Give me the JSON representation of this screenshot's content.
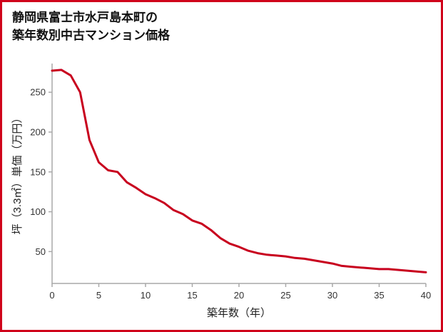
{
  "page": {
    "border_color": "#d0021b",
    "background": "#ffffff"
  },
  "header": {
    "title_line1": "静岡県富士市水戸島本町の",
    "title_line2": "築年数別中古マンション価格"
  },
  "chart_data": {
    "type": "line",
    "title": "静岡県富士市水戸島本町の築年数別中古マンション価格",
    "xlabel": "築年数（年）",
    "ylabel": "坪（3.3㎡）単価（万円）",
    "xlim": [
      0,
      40
    ],
    "ylim": [
      10,
      286
    ],
    "xticks": [
      0,
      5,
      10,
      15,
      20,
      25,
      30,
      35,
      40
    ],
    "yticks": [
      50,
      100,
      150,
      200,
      250
    ],
    "grid": false,
    "legend": false,
    "line_color": "#c8001e",
    "axis_color": "#a9a9a9",
    "x": [
      0,
      1,
      2,
      3,
      4,
      5,
      6,
      7,
      8,
      9,
      10,
      11,
      12,
      13,
      14,
      15,
      16,
      17,
      18,
      19,
      20,
      21,
      22,
      23,
      24,
      25,
      26,
      27,
      28,
      29,
      30,
      31,
      32,
      33,
      34,
      35,
      36,
      37,
      38,
      39,
      40
    ],
    "y": [
      277,
      278,
      271,
      250,
      190,
      162,
      152,
      150,
      137,
      130,
      122,
      117,
      111,
      102,
      97,
      89,
      85,
      77,
      67,
      60,
      56,
      51,
      48,
      46,
      45,
      44,
      42,
      41,
      39,
      37,
      35,
      32,
      31,
      30,
      29,
      28,
      28,
      27,
      26,
      25,
      24
    ]
  }
}
